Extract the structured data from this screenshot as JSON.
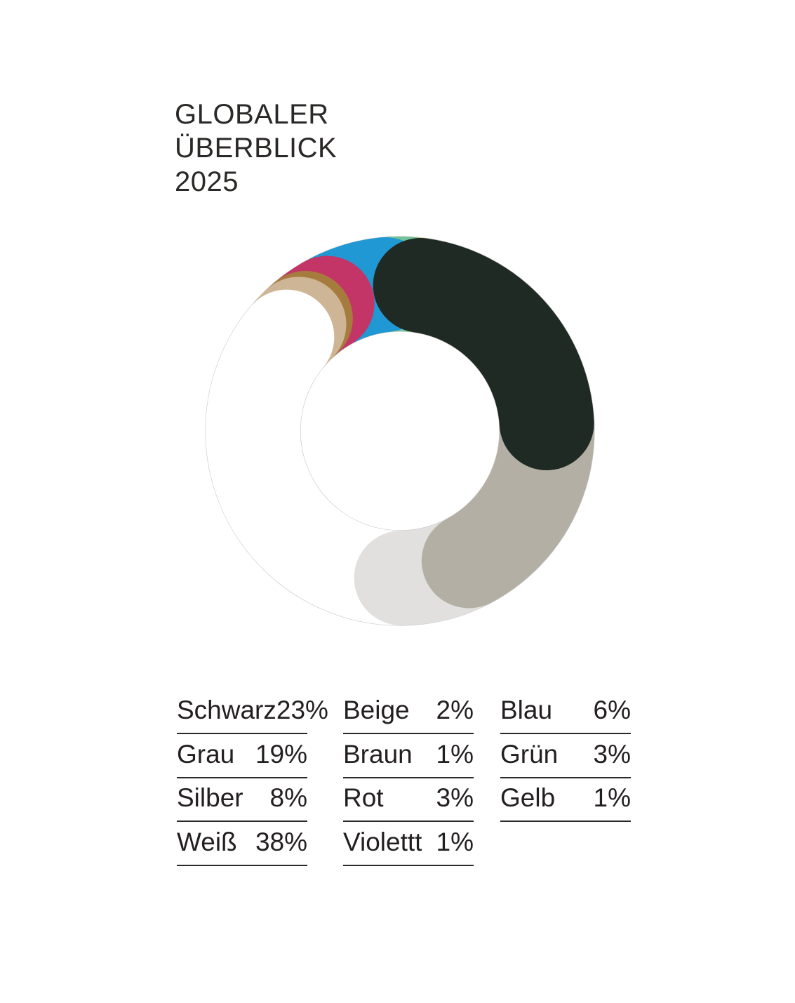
{
  "title": {
    "line1": "GLOBALER",
    "line2": "ÜBERBLICK",
    "line3": "2025"
  },
  "chart_data": {
    "type": "donut",
    "title": "GLOBALER ÜBERBLICK 2025",
    "unit": "%",
    "start_position": "top",
    "direction": "clockwise",
    "outline_color": "#c9c9c9",
    "series": [
      {
        "label": "Schwarz",
        "value": 23,
        "color": "#202a25"
      },
      {
        "label": "Grau",
        "value": 19,
        "color": "#b3afa5"
      },
      {
        "label": "Silber",
        "value": 8,
        "color": "#e1e0de"
      },
      {
        "label": "Weiß",
        "value": 38,
        "color": "#ffffff"
      },
      {
        "label": "Beige",
        "value": 2,
        "color": "#cdb596"
      },
      {
        "label": "Braun",
        "value": 1,
        "color": "#a67c3e"
      },
      {
        "label": "Rot",
        "value": 3,
        "color": "#c23566"
      },
      {
        "label": "Violettt",
        "value": 1,
        "color": "#b181bd"
      },
      {
        "label": "Blau",
        "value": 6,
        "color": "#1f98d4"
      },
      {
        "label": "Grün",
        "value": 3,
        "color": "#72c29a"
      },
      {
        "label": "Gelb",
        "value": 1,
        "color": "#f6ee4a"
      }
    ]
  },
  "legend": {
    "columns": [
      {
        "items": [
          {
            "label": "Schwarz",
            "value": "23%"
          },
          {
            "label": "Grau",
            "value": "19%"
          },
          {
            "label": "Silber",
            "value": "8%"
          },
          {
            "label": "Weiß",
            "value": "38%"
          }
        ]
      },
      {
        "items": [
          {
            "label": "Beige",
            "value": "2%"
          },
          {
            "label": "Braun",
            "value": "1%"
          },
          {
            "label": "Rot",
            "value": "3%"
          },
          {
            "label": "Violettt",
            "value": "1%"
          }
        ]
      },
      {
        "items": [
          {
            "label": "Blau",
            "value": "6%"
          },
          {
            "label": "Grün",
            "value": "3%"
          },
          {
            "label": "Gelb",
            "value": "1%"
          }
        ]
      }
    ]
  }
}
